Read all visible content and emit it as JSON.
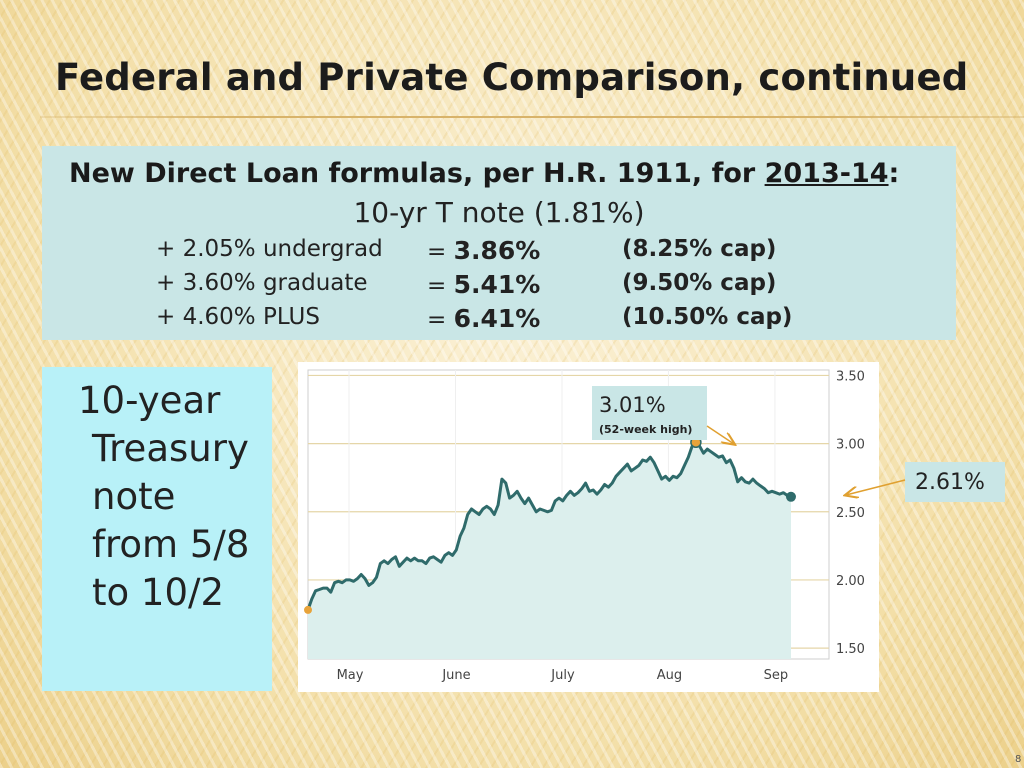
{
  "slide": {
    "title": "Federal and Private Comparison, continued",
    "page_number": "8"
  },
  "formula": {
    "heading_prefix": "New Direct Loan formulas, per H.R. 1911, for ",
    "heading_year": "2013-14",
    "heading_suffix": ":",
    "base": "10-yr T note (1.81%)",
    "rows": [
      {
        "add": "+ 2.05% undergrad",
        "eq": "= ",
        "rate": "3.86%",
        "cap": "(8.25% cap)"
      },
      {
        "add": "+ 3.60% graduate",
        "eq": "= ",
        "rate": "5.41%",
        "cap": "(9.50% cap)"
      },
      {
        "add": "+ 4.60% PLUS",
        "eq": "= ",
        "rate": "6.41%",
        "cap": "(10.50% cap)"
      }
    ]
  },
  "caption": {
    "lines": [
      "10-year",
      "Treasury",
      "note",
      "from 5/8",
      "to 10/2"
    ]
  },
  "callouts": {
    "high_value": "3.01%",
    "high_note": "(52-week high)",
    "end_value": "2.61%"
  },
  "chart_data": {
    "type": "area",
    "title": "",
    "xlabel": "",
    "ylabel": "",
    "x_ticks": [
      {
        "label": "May",
        "day": 5
      },
      {
        "label": "June",
        "day": 33
      },
      {
        "label": "July",
        "day": 61
      },
      {
        "label": "Aug",
        "day": 89
      },
      {
        "label": "Sep",
        "day": 117
      }
    ],
    "y_ticks": [
      1.5,
      2.0,
      2.5,
      3.0,
      3.5
    ],
    "y_tick_labels": [
      "1.50",
      "2.00",
      "2.50",
      "3.00",
      "3.50"
    ],
    "ylim": [
      1.42,
      3.54
    ],
    "xlim": [
      0,
      137
    ],
    "grid": true,
    "series": [
      {
        "name": "",
        "color": "#2f6b6b",
        "fill": "#dcefed",
        "points": [
          [
            0,
            1.78
          ],
          [
            1,
            1.86
          ],
          [
            2,
            1.92
          ],
          [
            3,
            1.93
          ],
          [
            4,
            1.94
          ],
          [
            5,
            1.94
          ],
          [
            6,
            1.91
          ],
          [
            7,
            1.98
          ],
          [
            8,
            1.99
          ],
          [
            9,
            1.98
          ],
          [
            10,
            2.0
          ],
          [
            11,
            2.0
          ],
          [
            12,
            1.99
          ],
          [
            13,
            2.01
          ],
          [
            14,
            2.04
          ],
          [
            15,
            2.01
          ],
          [
            16,
            1.96
          ],
          [
            17,
            1.98
          ],
          [
            18,
            2.02
          ],
          [
            19,
            2.12
          ],
          [
            20,
            2.14
          ],
          [
            21,
            2.12
          ],
          [
            22,
            2.15
          ],
          [
            23,
            2.17
          ],
          [
            24,
            2.1
          ],
          [
            25,
            2.13
          ],
          [
            26,
            2.16
          ],
          [
            27,
            2.14
          ],
          [
            28,
            2.16
          ],
          [
            29,
            2.14
          ],
          [
            30,
            2.14
          ],
          [
            31,
            2.12
          ],
          [
            32,
            2.16
          ],
          [
            33,
            2.17
          ],
          [
            34,
            2.15
          ],
          [
            35,
            2.13
          ],
          [
            36,
            2.18
          ],
          [
            37,
            2.2
          ],
          [
            38,
            2.18
          ],
          [
            39,
            2.22
          ],
          [
            40,
            2.32
          ],
          [
            41,
            2.38
          ],
          [
            42,
            2.48
          ],
          [
            43,
            2.52
          ],
          [
            44,
            2.5
          ],
          [
            45,
            2.48
          ],
          [
            46,
            2.52
          ],
          [
            47,
            2.54
          ],
          [
            48,
            2.52
          ],
          [
            49,
            2.48
          ],
          [
            50,
            2.55
          ],
          [
            51,
            2.74
          ],
          [
            52,
            2.71
          ],
          [
            53,
            2.6
          ],
          [
            54,
            2.62
          ],
          [
            55,
            2.65
          ],
          [
            56,
            2.6
          ],
          [
            57,
            2.56
          ],
          [
            58,
            2.6
          ],
          [
            59,
            2.55
          ],
          [
            60,
            2.5
          ],
          [
            61,
            2.52
          ],
          [
            62,
            2.51
          ],
          [
            63,
            2.5
          ],
          [
            64,
            2.51
          ],
          [
            65,
            2.58
          ],
          [
            66,
            2.6
          ],
          [
            67,
            2.58
          ],
          [
            68,
            2.62
          ],
          [
            69,
            2.65
          ],
          [
            70,
            2.62
          ],
          [
            71,
            2.64
          ],
          [
            72,
            2.67
          ],
          [
            73,
            2.71
          ],
          [
            74,
            2.65
          ],
          [
            75,
            2.66
          ],
          [
            76,
            2.63
          ],
          [
            77,
            2.66
          ],
          [
            78,
            2.7
          ],
          [
            79,
            2.68
          ],
          [
            80,
            2.71
          ],
          [
            81,
            2.76
          ],
          [
            82,
            2.79
          ],
          [
            83,
            2.82
          ],
          [
            84,
            2.85
          ],
          [
            85,
            2.8
          ],
          [
            86,
            2.82
          ],
          [
            87,
            2.84
          ],
          [
            88,
            2.88
          ],
          [
            89,
            2.87
          ],
          [
            90,
            2.9
          ],
          [
            91,
            2.86
          ],
          [
            92,
            2.8
          ],
          [
            93,
            2.74
          ],
          [
            94,
            2.76
          ],
          [
            95,
            2.73
          ],
          [
            96,
            2.76
          ],
          [
            97,
            2.75
          ],
          [
            98,
            2.78
          ],
          [
            99,
            2.84
          ],
          [
            100,
            2.9
          ],
          [
            101,
            2.98
          ],
          [
            102,
            3.01
          ],
          [
            103,
            2.98
          ],
          [
            104,
            2.93
          ],
          [
            105,
            2.96
          ],
          [
            106,
            2.94
          ],
          [
            107,
            2.92
          ],
          [
            108,
            2.9
          ],
          [
            109,
            2.91
          ],
          [
            110,
            2.86
          ],
          [
            111,
            2.88
          ],
          [
            112,
            2.82
          ],
          [
            113,
            2.72
          ],
          [
            114,
            2.75
          ],
          [
            115,
            2.72
          ],
          [
            116,
            2.71
          ],
          [
            117,
            2.74
          ],
          [
            118,
            2.71
          ],
          [
            119,
            2.69
          ],
          [
            120,
            2.67
          ],
          [
            121,
            2.64
          ],
          [
            122,
            2.65
          ],
          [
            123,
            2.64
          ],
          [
            124,
            2.63
          ],
          [
            125,
            2.64
          ],
          [
            126,
            2.62
          ],
          [
            127,
            2.61
          ]
        ]
      }
    ],
    "highlighted_points": [
      {
        "day": 0,
        "value": 1.78
      },
      {
        "day": 102,
        "value": 3.01
      },
      {
        "day": 127,
        "value": 2.61
      }
    ]
  },
  "colors": {
    "formula_bg": "#c9e6e6",
    "caption_bg": "#b8f1f8",
    "arrow": "#e0a030",
    "line": "#2f6b6b",
    "area_fill": "#dcefed",
    "marker_orange": "#e8a33a"
  }
}
